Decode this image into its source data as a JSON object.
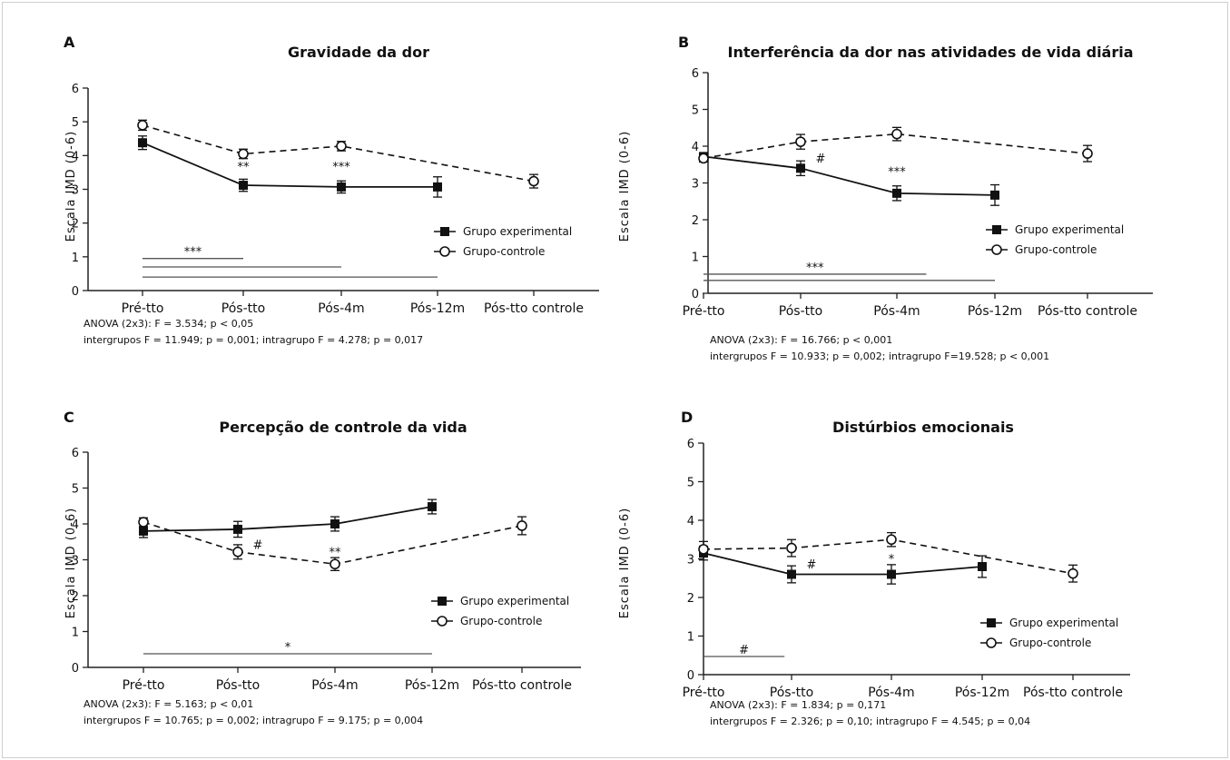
{
  "chart_data": [
    {
      "type": "line",
      "panel": "A",
      "title": "Gravidade da dor",
      "ylabel": "Escala IMD (0-6)",
      "xlabel": "",
      "ylim": [
        0,
        6
      ],
      "yticks": [
        "0",
        "1",
        "2",
        "3",
        "4",
        "5",
        "6"
      ],
      "categories": [
        "Pré-tto",
        "Pós-tto",
        "Pós-4m",
        "Pós-12m",
        "Pós-tto controle"
      ],
      "grid": false,
      "legend_position": "right",
      "series": [
        {
          "name": "Grupo experimental",
          "marker": "square",
          "line": "solid",
          "values": [
            4.38,
            3.12,
            3.07,
            3.07,
            null
          ],
          "errors": [
            0.2,
            0.18,
            0.18,
            0.3,
            null
          ]
        },
        {
          "name": "Grupo-controle",
          "marker": "circle",
          "line": "dashed",
          "values": [
            4.9,
            4.05,
            4.28,
            null,
            3.24
          ],
          "errors": [
            0.15,
            0.14,
            0.14,
            null,
            0.2
          ]
        }
      ],
      "point_annotations": [
        {
          "text": "**",
          "x_index": 1,
          "y": 3.55
        },
        {
          "text": "***",
          "x_index": 2,
          "y": 3.55
        }
      ],
      "significance_bars": [
        {
          "text": "***",
          "from_index": 0,
          "to_index": 1,
          "y": 0.95
        },
        {
          "text": "",
          "from_index": 0,
          "to_index": 2,
          "y": 0.7
        },
        {
          "text": "",
          "from_index": 0,
          "to_index": 3,
          "y": 0.4
        }
      ],
      "stats_lines": [
        "ANOVA (2x3): F = 3.534;  p < 0,05",
        "intergrupos F = 11.949; p = 0,001; intragrupo F = 4.278; p = 0,017"
      ]
    },
    {
      "type": "line",
      "panel": "B",
      "title": "Interferência da dor nas atividades de vida diária",
      "ylabel": "Escala IMD (0-6)",
      "xlabel": "",
      "ylim": [
        0,
        6
      ],
      "yticks": [
        "0",
        "1",
        "2",
        "3",
        "4",
        "5",
        "6"
      ],
      "categories": [
        "Pré-tto",
        "Pós-tto",
        "Pós-4m",
        "Pós-12m",
        "Pós-tto controle"
      ],
      "grid": false,
      "legend_position": "right",
      "series": [
        {
          "name": "Grupo experimental",
          "marker": "square",
          "line": "solid",
          "values": [
            3.72,
            3.4,
            2.72,
            2.67,
            null
          ],
          "errors": [
            0.1,
            0.2,
            0.2,
            0.28,
            null
          ]
        },
        {
          "name": "Grupo-controle",
          "marker": "circle",
          "line": "dashed",
          "values": [
            3.67,
            4.12,
            4.33,
            null,
            3.8
          ],
          "errors": [
            0.1,
            0.2,
            0.18,
            null,
            0.22
          ]
        }
      ],
      "point_annotations": [
        {
          "text": "#",
          "x_index": 1,
          "y": 3.55
        },
        {
          "text": "***",
          "x_index": 2,
          "y": 3.2
        }
      ],
      "significance_bars": [
        {
          "text": "***",
          "from_index": 0,
          "to_index": 2.3,
          "y": 0.52
        },
        {
          "text": "",
          "from_index": 0,
          "to_index": 3,
          "y": 0.35
        }
      ],
      "stats_lines": [
        "ANOVA (2x3): F = 16.766;  p < 0,001",
        "intergrupos F = 10.933; p = 0,002; intragrupo F=19.528; p < 0,001"
      ]
    },
    {
      "type": "line",
      "panel": "C",
      "title": "Percepção de controle da vida",
      "ylabel": "Escala IMD (0-6)",
      "xlabel": "",
      "ylim": [
        0,
        6
      ],
      "yticks": [
        "0",
        "1",
        "2",
        "3",
        "4",
        "5",
        "6"
      ],
      "categories": [
        "Pré-tto",
        "Pós-tto",
        "Pós-4m",
        "Pós-12m",
        "Pós-tto controle"
      ],
      "grid": false,
      "legend_position": "right",
      "series": [
        {
          "name": "Grupo experimental",
          "marker": "square",
          "line": "solid",
          "values": [
            3.8,
            3.85,
            4.0,
            4.48,
            null
          ],
          "errors": [
            0.18,
            0.22,
            0.2,
            0.2,
            null
          ]
        },
        {
          "name": "Grupo-controle",
          "marker": "circle",
          "line": "dashed",
          "values": [
            4.05,
            3.22,
            2.88,
            null,
            3.95
          ],
          "errors": [
            0.12,
            0.2,
            0.18,
            null,
            0.25
          ]
        }
      ],
      "point_annotations": [
        {
          "text": "#",
          "x_index": 1,
          "y": 3.3
        },
        {
          "text": "**",
          "x_index": 2,
          "y": 3.1
        }
      ],
      "significance_bars": [
        {
          "text": "*",
          "from_index": 0,
          "to_index": 3,
          "y": 0.38
        }
      ],
      "stats_lines": [
        "ANOVA (2x3): F = 5.163;  p < 0,01",
        "intergrupos F = 10.765; p = 0,002; intragrupo F = 9.175; p = 0,004"
      ]
    },
    {
      "type": "line",
      "panel": "D",
      "title": "Distúrbios emocionais",
      "ylabel": "Escala IMD (0-6)",
      "xlabel": "",
      "ylim": [
        0,
        6
      ],
      "yticks": [
        "0",
        "1",
        "2",
        "3",
        "4",
        "5",
        "6"
      ],
      "categories": [
        "Pré-tto",
        "Pós-tto",
        "Pós-4m",
        "Pós-12m",
        "Pós-tto controle"
      ],
      "grid": false,
      "legend_position": "right",
      "series": [
        {
          "name": "Grupo experimental",
          "marker": "square",
          "line": "solid",
          "values": [
            3.15,
            2.6,
            2.6,
            2.8,
            null
          ],
          "errors": [
            0.18,
            0.22,
            0.25,
            0.28,
            null
          ]
        },
        {
          "name": "Grupo-controle",
          "marker": "circle",
          "line": "dashed",
          "values": [
            3.25,
            3.28,
            3.5,
            null,
            2.62
          ],
          "errors": [
            0.2,
            0.22,
            0.18,
            null,
            0.22
          ]
        }
      ],
      "point_annotations": [
        {
          "text": "#",
          "x_index": 1,
          "y": 2.75
        },
        {
          "text": "*",
          "x_index": 2,
          "y": 2.9
        }
      ],
      "significance_bars": [
        {
          "text": "#",
          "from_index": 0,
          "to_index": 0.92,
          "y": 0.47
        }
      ],
      "stats_lines": [
        "ANOVA (2x3): F = 1.834;  p = 0,171",
        "intergrupos F = 2.326; p = 0,10; intragrupo F = 4.545; p = 0,04"
      ]
    }
  ],
  "colors": {
    "ink": "#111111",
    "axis": "#222222",
    "bar": "#555555",
    "frame": "#cfcfcf"
  }
}
